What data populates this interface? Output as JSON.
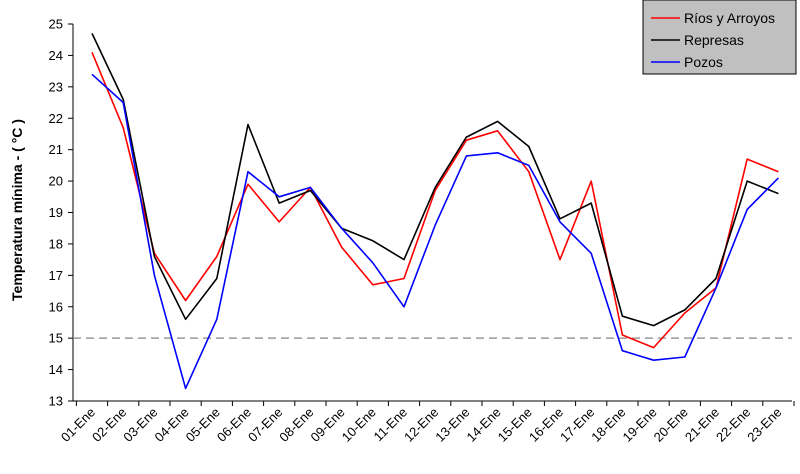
{
  "chart_data": {
    "type": "line",
    "ylabel": "Temperatura mínima - ( °C )",
    "xlabel": "",
    "ylim": [
      13,
      25
    ],
    "yticks": [
      13,
      14,
      15,
      16,
      17,
      18,
      19,
      20,
      21,
      22,
      23,
      24,
      25
    ],
    "grid": false,
    "legend_position": "top-right",
    "categories": [
      "01-Ene",
      "02-Ene",
      "03-Ene",
      "04-Ene",
      "05-Ene",
      "06-Ene",
      "07-Ene",
      "08-Ene",
      "09-Ene",
      "10-Ene",
      "11-Ene",
      "12-Ene",
      "13-Ene",
      "14-Ene",
      "15-Ene",
      "16-Ene",
      "17-Ene",
      "18-Ene",
      "19-Ene",
      "20-Ene",
      "21-Ene",
      "22-Ene",
      "23-Ene"
    ],
    "reference_line": {
      "y": 15,
      "style": "dashed",
      "color": "#999999"
    },
    "series": [
      {
        "name": "Ríos y Arroyos",
        "color": "#ff0000",
        "values": [
          24.1,
          21.7,
          17.7,
          16.2,
          17.6,
          19.9,
          18.7,
          19.8,
          17.9,
          16.7,
          16.9,
          19.7,
          21.3,
          21.6,
          20.3,
          17.5,
          20.0,
          15.1,
          14.7,
          15.8,
          16.6,
          20.7,
          20.3
        ]
      },
      {
        "name": "Represas",
        "color": "#000000",
        "values": [
          24.7,
          22.6,
          17.6,
          15.6,
          16.9,
          21.8,
          19.3,
          19.7,
          18.5,
          18.1,
          17.5,
          19.8,
          21.4,
          21.9,
          21.1,
          18.8,
          19.3,
          15.7,
          15.4,
          15.9,
          16.9,
          20.0,
          19.6
        ]
      },
      {
        "name": "Pozos",
        "color": "#0000ff",
        "values": [
          23.4,
          22.5,
          17.0,
          13.4,
          15.6,
          20.3,
          19.5,
          19.8,
          18.5,
          17.4,
          16.0,
          18.6,
          20.8,
          20.9,
          20.5,
          18.7,
          17.7,
          14.6,
          14.3,
          14.4,
          16.6,
          19.1,
          20.1
        ]
      }
    ]
  }
}
